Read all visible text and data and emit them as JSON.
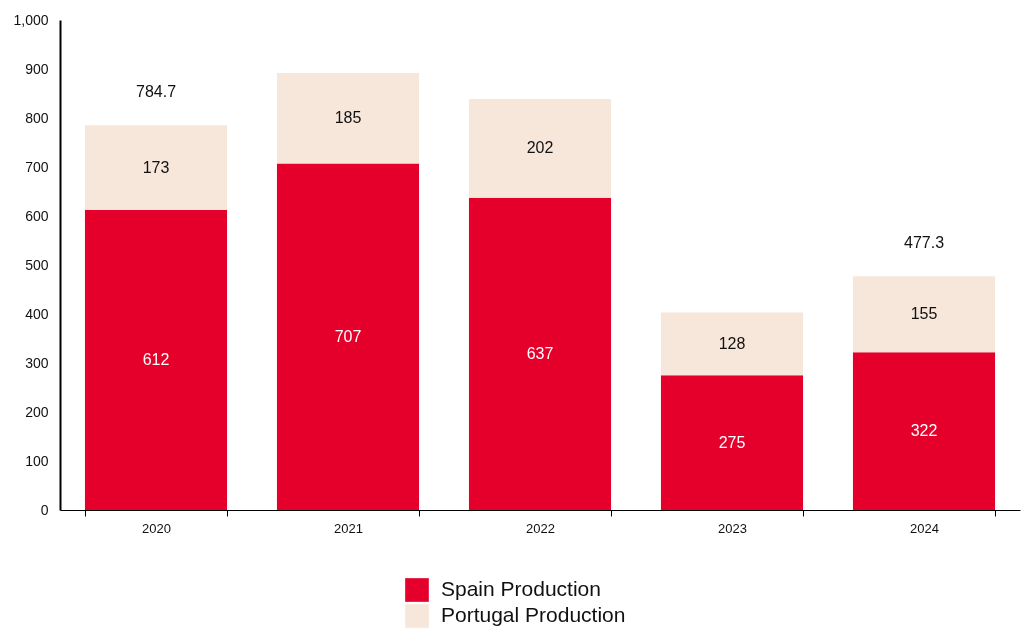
{
  "chart_data": {
    "type": "bar",
    "stacked": true,
    "categories": [
      "2020",
      "2021",
      "2022",
      "2023",
      "2024"
    ],
    "series": [
      {
        "name": "Spain Production",
        "color": "#e4002b",
        "values": [
          612,
          707,
          637,
          275,
          322
        ]
      },
      {
        "name": "Portugal Production",
        "color": "#f7e6da",
        "values": [
          173,
          185,
          202,
          128,
          155
        ]
      }
    ],
    "ylim": [
      0,
      1000
    ],
    "yticks": [
      0,
      100,
      200,
      300,
      400,
      500,
      600,
      700,
      800,
      900,
      {
        "value": 1000,
        "label": "1,000"
      }
    ],
    "data_labels": true,
    "annotations": [
      {
        "text": "784.7",
        "x": "2020",
        "y": 784.7
      },
      {
        "text": "477.3",
        "x": "2024",
        "y": 477.3
      }
    ],
    "grid": false,
    "legend": "bottom"
  }
}
